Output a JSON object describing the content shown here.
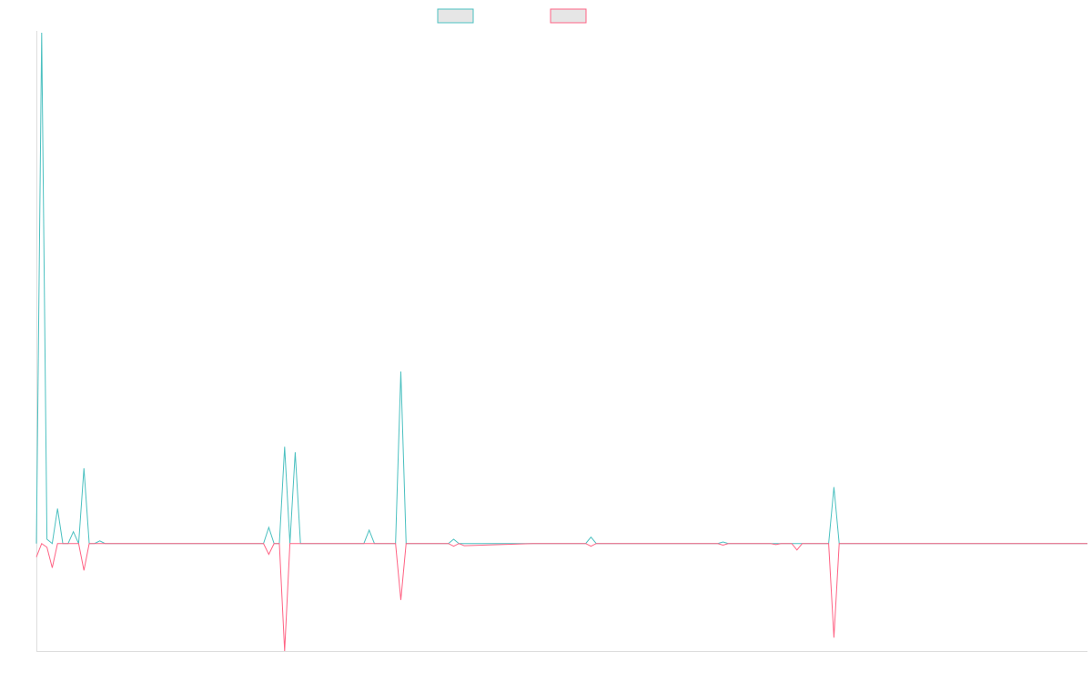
{
  "colors": {
    "series_a": "#4bc0c0",
    "series_b": "#ff6384",
    "legend_fill": "#e6e6e6",
    "axis": "#dddddd"
  },
  "chart_data": {
    "type": "line",
    "legend_position": "top-center",
    "grid": false,
    "x_count": 200,
    "ylim": [
      -20,
      95
    ],
    "series": [
      {
        "color": "#4bc0c0",
        "points": [
          [
            0,
            0
          ],
          [
            1,
            95
          ],
          [
            2,
            0.8
          ],
          [
            3,
            0
          ],
          [
            4,
            6.5
          ],
          [
            5,
            0
          ],
          [
            6,
            0
          ],
          [
            7,
            2.2
          ],
          [
            8,
            0
          ],
          [
            9,
            14
          ],
          [
            10,
            0
          ],
          [
            11,
            0
          ],
          [
            12,
            0.5
          ],
          [
            13,
            0
          ],
          [
            43,
            0
          ],
          [
            44,
            3
          ],
          [
            45,
            0
          ],
          [
            46,
            0
          ],
          [
            47,
            18
          ],
          [
            48,
            0
          ],
          [
            49,
            17
          ],
          [
            50,
            0
          ],
          [
            62,
            0
          ],
          [
            63,
            2.5
          ],
          [
            64,
            0
          ],
          [
            67,
            0
          ],
          [
            68,
            0
          ],
          [
            69,
            32
          ],
          [
            70,
            0
          ],
          [
            78,
            0
          ],
          [
            79,
            0.8
          ],
          [
            80,
            0
          ],
          [
            81,
            0
          ],
          [
            94,
            0
          ],
          [
            95,
            0
          ],
          [
            96,
            0
          ],
          [
            104,
            0
          ],
          [
            105,
            1.2
          ],
          [
            106,
            0
          ],
          [
            115,
            0
          ],
          [
            116,
            0
          ],
          [
            117,
            0
          ],
          [
            129,
            0
          ],
          [
            130,
            0.3
          ],
          [
            131,
            0
          ],
          [
            139,
            0
          ],
          [
            140,
            0
          ],
          [
            141,
            0
          ],
          [
            143,
            0
          ],
          [
            144,
            0
          ],
          [
            145,
            0
          ],
          [
            148,
            0
          ],
          [
            149,
            0
          ],
          [
            150,
            0
          ],
          [
            151,
            10.5
          ],
          [
            152,
            0
          ],
          [
            199,
            0
          ]
        ]
      },
      {
        "color": "#ff6384",
        "points": [
          [
            0,
            -2.5
          ],
          [
            1,
            0
          ],
          [
            2,
            -0.7
          ],
          [
            3,
            -4.5
          ],
          [
            4,
            0
          ],
          [
            5,
            0
          ],
          [
            6,
            0
          ],
          [
            7,
            0
          ],
          [
            8,
            0
          ],
          [
            9,
            -5
          ],
          [
            10,
            0
          ],
          [
            11,
            0
          ],
          [
            12,
            0
          ],
          [
            13,
            0
          ],
          [
            43,
            0
          ],
          [
            44,
            -2
          ],
          [
            45,
            0
          ],
          [
            46,
            0
          ],
          [
            47,
            -20
          ],
          [
            48,
            0
          ],
          [
            49,
            0
          ],
          [
            50,
            0
          ],
          [
            62,
            0
          ],
          [
            63,
            0
          ],
          [
            64,
            0
          ],
          [
            67,
            0
          ],
          [
            68,
            0
          ],
          [
            69,
            -10.5
          ],
          [
            70,
            0
          ],
          [
            78,
            0
          ],
          [
            79,
            -0.5
          ],
          [
            80,
            0
          ],
          [
            81,
            -0.4
          ],
          [
            94,
            0
          ],
          [
            95,
            0
          ],
          [
            96,
            0
          ],
          [
            104,
            0
          ],
          [
            105,
            -0.5
          ],
          [
            106,
            0
          ],
          [
            115,
            0
          ],
          [
            116,
            0
          ],
          [
            117,
            0
          ],
          [
            129,
            0
          ],
          [
            130,
            -0.3
          ],
          [
            131,
            0
          ],
          [
            139,
            0
          ],
          [
            140,
            -0.2
          ],
          [
            141,
            0
          ],
          [
            143,
            0
          ],
          [
            144,
            -1.2
          ],
          [
            145,
            0
          ],
          [
            148,
            0
          ],
          [
            149,
            0
          ],
          [
            150,
            0
          ],
          [
            151,
            -17.5
          ],
          [
            152,
            0
          ],
          [
            199,
            0
          ]
        ]
      }
    ]
  }
}
